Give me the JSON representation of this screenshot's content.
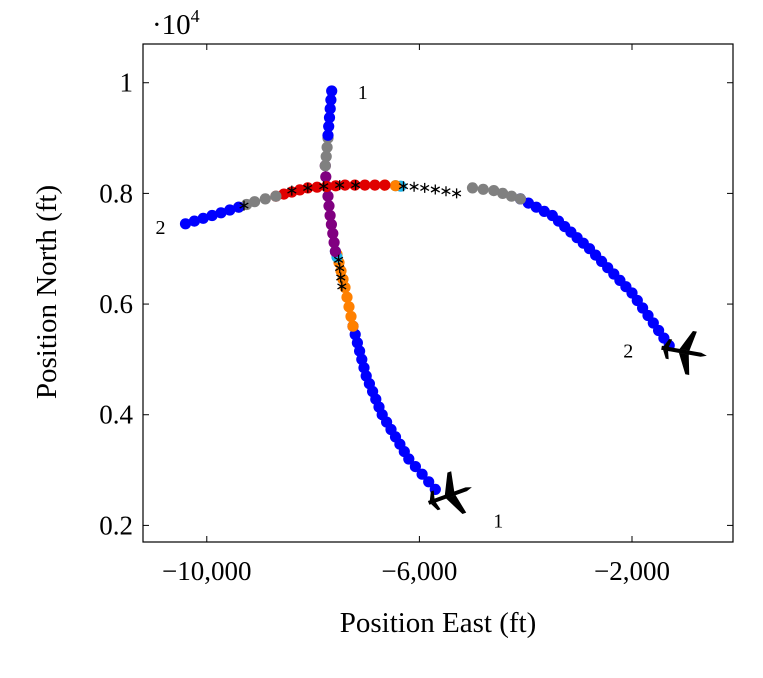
{
  "chart_data": {
    "type": "scatter",
    "xlabel": "Position East (ft)",
    "ylabel": "Position North (ft)",
    "y_scale_label": "·10",
    "y_scale_exponent": "4",
    "xlim": [
      -11200,
      -100
    ],
    "ylim": [
      0.17,
      1.07
    ],
    "x_ticks": [
      -10000,
      -6000,
      -2000
    ],
    "x_tick_labels": [
      "−10,000",
      "−6,000",
      "−2,000"
    ],
    "y_ticks": [
      0.2,
      0.4,
      0.6,
      0.8,
      1.0
    ],
    "y_tick_labels": [
      "0.2",
      "0.4",
      "0.6",
      "0.8",
      "1"
    ],
    "grid": false,
    "status_colors": {
      "blue": "#0000ff",
      "gray": "#808080",
      "purple": "#800080",
      "cyan": "#1cb4e8",
      "orange": "#ff8000",
      "red": "#e00000",
      "black": "#000000"
    },
    "series": [
      {
        "name": "1",
        "start_label": "1",
        "end_label": "1",
        "start": [
          -5700,
          0.265
        ],
        "end": [
          -7650,
          0.985
        ],
        "segments": [
          {
            "color": "blue",
            "points": [
              [
                -5700,
                0.265
              ],
              [
                -6200,
                0.32
              ],
              [
                -6700,
                0.4
              ],
              [
                -7000,
                0.47
              ],
              [
                -7250,
                0.56
              ]
            ]
          },
          {
            "color": "orange",
            "points": [
              [
                -7250,
                0.56
              ],
              [
                -7400,
                0.63
              ],
              [
                -7550,
                0.69
              ]
            ]
          },
          {
            "color": "cyan",
            "points": [
              [
                -7550,
                0.685
              ],
              [
                -7580,
                0.695
              ]
            ]
          },
          {
            "color": "purple",
            "points": [
              [
                -7580,
                0.695
              ],
              [
                -7680,
                0.76
              ],
              [
                -7760,
                0.83
              ],
              [
                -7770,
                0.85
              ]
            ]
          },
          {
            "color": "gray",
            "points": [
              [
                -7770,
                0.85
              ],
              [
                -7720,
                0.9
              ]
            ]
          },
          {
            "color": "blue",
            "points": [
              [
                -7720,
                0.905
              ],
              [
                -7650,
                0.985
              ]
            ]
          }
        ],
        "markers": [
          [
            -7500,
            0.665
          ],
          [
            -7480,
            0.648
          ],
          [
            -7460,
            0.632
          ],
          [
            -7520,
            0.68
          ]
        ]
      },
      {
        "name": "2",
        "start_label": "2",
        "end_label": "2",
        "start": [
          -1300,
          0.525
        ],
        "end": [
          -10400,
          0.745
        ],
        "segments": [
          {
            "color": "blue",
            "points": [
              [
                -1300,
                0.525
              ],
              [
                -2000,
                0.62
              ],
              [
                -2800,
                0.7
              ],
              [
                -3500,
                0.76
              ],
              [
                -4100,
                0.79
              ]
            ]
          },
          {
            "color": "gray",
            "points": [
              [
                -4100,
                0.79
              ],
              [
                -4600,
                0.805
              ],
              [
                -5000,
                0.81
              ]
            ]
          },
          {
            "color": "cyan",
            "points": [
              [
                -6350,
                0.813
              ],
              [
                -6450,
                0.814
              ]
            ]
          },
          {
            "color": "orange",
            "points": [
              [
                -6450,
                0.814
              ],
              [
                -6650,
                0.815
              ]
            ]
          },
          {
            "color": "red",
            "points": [
              [
                -6650,
                0.815
              ],
              [
                -7400,
                0.815
              ],
              [
                -8100,
                0.81
              ],
              [
                -8700,
                0.795
              ]
            ]
          },
          {
            "color": "gray",
            "points": [
              [
                -8700,
                0.795
              ],
              [
                -9100,
                0.785
              ],
              [
                -9400,
                0.775
              ]
            ]
          },
          {
            "color": "blue",
            "points": [
              [
                -9400,
                0.775
              ],
              [
                -9900,
                0.76
              ],
              [
                -10400,
                0.745
              ]
            ]
          }
        ],
        "markers": [
          [
            -6300,
            0.813
          ],
          [
            -6100,
            0.812
          ],
          [
            -5900,
            0.81
          ],
          [
            -5700,
            0.807
          ],
          [
            -5500,
            0.804
          ],
          [
            -5300,
            0.8
          ],
          [
            -7200,
            0.815
          ],
          [
            -7500,
            0.815
          ],
          [
            -7800,
            0.813
          ],
          [
            -8100,
            0.81
          ],
          [
            -8400,
            0.805
          ],
          [
            -9300,
            0.778
          ]
        ]
      }
    ]
  }
}
